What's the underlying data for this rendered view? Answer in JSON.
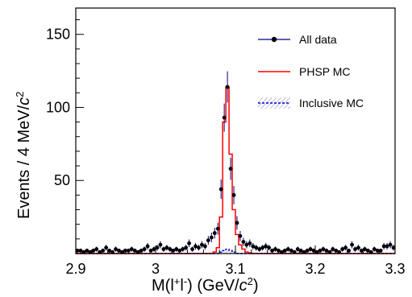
{
  "chart_data": {
    "type": "histogram",
    "xlabel": {
      "pre": "M(l",
      "sup1": "+",
      "mid": "l",
      "sup2": "-",
      "post": ") (GeV/",
      "c": "c",
      "sup3": "2",
      "end": ")"
    },
    "ylabel": {
      "pre": "Events / 4 MeV/",
      "c": "c",
      "sup": "2"
    },
    "xlim": [
      2.9,
      3.3
    ],
    "ylim": [
      0,
      168
    ],
    "x_major_ticks": [
      2.9,
      3.0,
      3.1,
      3.2,
      3.3
    ],
    "x_tick_labels": [
      "2.9",
      "3",
      "3.1",
      "3.2",
      "3.3"
    ],
    "y_major_ticks": [
      50,
      100,
      150
    ],
    "y_tick_labels": [
      "50",
      "100",
      "150"
    ],
    "bin_width": 0.004,
    "legend_placement": "top-right",
    "series": [
      {
        "name": "All data",
        "style": "points-with-errors",
        "color": "#000000",
        "bin_centers": [
          2.902,
          2.906,
          2.91,
          2.914,
          2.918,
          2.922,
          2.926,
          2.93,
          2.934,
          2.938,
          2.942,
          2.946,
          2.95,
          2.954,
          2.958,
          2.962,
          2.966,
          2.97,
          2.974,
          2.978,
          2.982,
          2.986,
          2.99,
          2.994,
          2.998,
          3.002,
          3.006,
          3.01,
          3.014,
          3.018,
          3.022,
          3.026,
          3.03,
          3.034,
          3.038,
          3.042,
          3.046,
          3.05,
          3.054,
          3.058,
          3.062,
          3.066,
          3.07,
          3.074,
          3.078,
          3.082,
          3.086,
          3.09,
          3.094,
          3.098,
          3.102,
          3.106,
          3.11,
          3.114,
          3.118,
          3.122,
          3.126,
          3.13,
          3.134,
          3.138,
          3.142,
          3.146,
          3.15,
          3.154,
          3.158,
          3.162,
          3.166,
          3.17,
          3.174,
          3.178,
          3.182,
          3.186,
          3.19,
          3.194,
          3.198,
          3.202,
          3.206,
          3.21,
          3.214,
          3.218,
          3.222,
          3.226,
          3.23,
          3.234,
          3.238,
          3.242,
          3.246,
          3.25,
          3.254,
          3.258,
          3.262,
          3.266,
          3.27,
          3.274,
          3.278,
          3.282,
          3.286,
          3.29,
          3.294,
          3.298
        ],
        "values": [
          2,
          2,
          1,
          2,
          1,
          2,
          3,
          1,
          2,
          4,
          2,
          1,
          3,
          2,
          1,
          2,
          2,
          3,
          2,
          1,
          2,
          3,
          5,
          2,
          3,
          4,
          6,
          3,
          4,
          3,
          2,
          3,
          2,
          3,
          4,
          7,
          3,
          5,
          4,
          6,
          5,
          9,
          11,
          14,
          17,
          44,
          93,
          114,
          58,
          40,
          21,
          12,
          8,
          6,
          7,
          5,
          4,
          3,
          4,
          5,
          4,
          2,
          3,
          2,
          1,
          2,
          3,
          2,
          1,
          3,
          2,
          1,
          2,
          3,
          2,
          1,
          2,
          3,
          2,
          1,
          3,
          2,
          1,
          3,
          4,
          2,
          6,
          3,
          4,
          2,
          3,
          2,
          1,
          3,
          2,
          2,
          5,
          5,
          6,
          4
        ]
      },
      {
        "name": "PHSP MC",
        "style": "step-line",
        "color": "#ff0000",
        "values": [
          0,
          0,
          0,
          0,
          0,
          0,
          0,
          0,
          0,
          0,
          0,
          0,
          0,
          0,
          0,
          0,
          0,
          0,
          0,
          0,
          0,
          0,
          0,
          0,
          0,
          0,
          0,
          0,
          0,
          0,
          0,
          0,
          0,
          0,
          0,
          0,
          0,
          0,
          0,
          0,
          0,
          0,
          0,
          1,
          4,
          25,
          90,
          114,
          68,
          30,
          13,
          6,
          3,
          1,
          0.5,
          0,
          0,
          0,
          0,
          0,
          0,
          0,
          0,
          0,
          0,
          0,
          0,
          0,
          0,
          0,
          0,
          0,
          0,
          0,
          0,
          0,
          0,
          0,
          0,
          0,
          0,
          0,
          0,
          0,
          0,
          0,
          0,
          0,
          0,
          0,
          0,
          0,
          0,
          0,
          0,
          0,
          0,
          0,
          0,
          0
        ]
      },
      {
        "name": "Inclusive MC",
        "style": "dashed-line-hatched",
        "color": "#0000cc",
        "values": [
          0,
          0,
          0,
          0,
          0,
          0,
          0,
          0,
          0,
          0,
          0,
          0,
          0,
          0,
          0,
          0,
          0,
          0,
          0,
          0,
          0,
          0,
          0,
          0,
          0,
          0,
          0,
          0,
          0,
          0,
          0,
          0,
          0,
          0,
          0,
          0,
          0,
          0,
          0,
          0,
          0,
          0,
          0,
          0,
          0,
          1,
          2,
          3,
          2,
          1,
          0,
          0,
          0,
          0,
          0,
          0,
          0,
          0,
          0,
          0,
          0,
          0,
          0,
          0,
          0,
          0,
          0,
          0,
          0,
          0,
          0,
          0,
          0,
          0,
          0,
          0,
          0,
          0,
          0,
          0,
          0,
          0,
          0,
          0,
          0,
          0,
          0,
          0,
          0,
          0,
          0,
          0,
          0,
          0,
          0,
          0,
          0,
          0,
          0,
          0
        ]
      }
    ]
  }
}
